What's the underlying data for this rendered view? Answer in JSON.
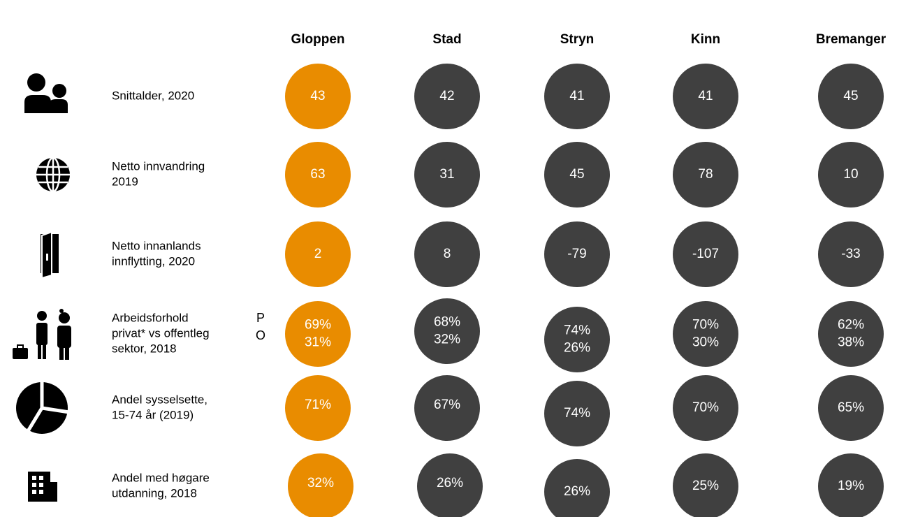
{
  "header": {
    "columns": [
      "Gloppen",
      "Stad",
      "Stryn",
      "Kinn",
      "Bremanger"
    ]
  },
  "rows": [
    {
      "label": [
        "Snittalder, 2020"
      ],
      "values": [
        [
          "43"
        ],
        [
          "42"
        ],
        [
          "41"
        ],
        [
          "41"
        ],
        [
          "45"
        ]
      ]
    },
    {
      "label": [
        "Netto innvandring",
        "2019"
      ],
      "values": [
        [
          "63"
        ],
        [
          "31"
        ],
        [
          "45"
        ],
        [
          "78"
        ],
        [
          "10"
        ]
      ]
    },
    {
      "label": [
        "Netto innanlands",
        "innflytting, 2020"
      ],
      "values": [
        [
          "2"
        ],
        [
          "8"
        ],
        [
          "-79"
        ],
        [
          "-107"
        ],
        [
          "-33"
        ]
      ]
    },
    {
      "label": [
        "Arbeidsforhold",
        "privat* vs offentleg",
        "sektor, 2018"
      ],
      "markers": [
        "P",
        "O"
      ],
      "values": [
        [
          "69%",
          "31%"
        ],
        [
          "68%",
          "32%"
        ],
        [
          "74%",
          "26%"
        ],
        [
          "70%",
          "30%"
        ],
        [
          "62%",
          "38%"
        ]
      ]
    },
    {
      "label": [
        "Andel sysselsette,",
        "15-74 år (2019)"
      ],
      "values": [
        [
          "71%"
        ],
        [
          "67%"
        ],
        [
          "74%"
        ],
        [
          "70%"
        ],
        [
          "65%"
        ]
      ]
    },
    {
      "label": [
        "Andel med høgare",
        "utdanning, 2018"
      ],
      "values": [
        [
          "32%"
        ],
        [
          "26%"
        ],
        [
          "26%"
        ],
        [
          "25%"
        ],
        [
          "19%"
        ]
      ]
    }
  ]
}
